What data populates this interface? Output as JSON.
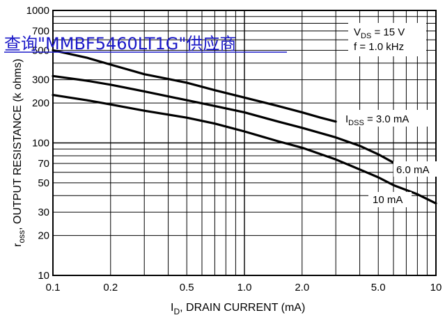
{
  "chart_data": {
    "type": "line",
    "xscale": "log",
    "yscale": "log",
    "xlim": [
      0.1,
      10
    ],
    "ylim": [
      10,
      1000
    ],
    "grid": true,
    "xlabel_main": "I",
    "xlabel_sub": "D",
    "xlabel_rest": ", DRAIN CURRENT (mA)",
    "ylabel_main": "r",
    "ylabel_sub": "oss",
    "ylabel_rest": ", OUTPUT RESISTANCE (k ohms)",
    "x_ticks": [
      {
        "value": 0.1,
        "label": "0.1"
      },
      {
        "value": 0.2,
        "label": "0.2"
      },
      {
        "value": 0.5,
        "label": "0.5"
      },
      {
        "value": 1,
        "label": "1.0"
      },
      {
        "value": 2,
        "label": "2.0"
      },
      {
        "value": 5,
        "label": "5.0"
      },
      {
        "value": 10,
        "label": "10"
      }
    ],
    "y_ticks": [
      {
        "value": 10,
        "label": "10"
      },
      {
        "value": 20,
        "label": "20"
      },
      {
        "value": 30,
        "label": "30"
      },
      {
        "value": 50,
        "label": "50"
      },
      {
        "value": 70,
        "label": "70"
      },
      {
        "value": 100,
        "label": "100"
      },
      {
        "value": 200,
        "label": "200"
      },
      {
        "value": 300,
        "label": "300"
      },
      {
        "value": 500,
        "label": "500"
      },
      {
        "value": 700,
        "label": "700"
      },
      {
        "value": 1000,
        "label": "1000"
      }
    ],
    "conditions": {
      "vds_main": "V",
      "vds_sub": "DS",
      "vds_rest": " = 15 V",
      "freq": "f = 1.0 kHz"
    },
    "series": [
      {
        "name_main": "I",
        "name_sub": "DSS",
        "name_rest": " = 3.0 mA",
        "x": [
          0.1,
          0.15,
          0.2,
          0.3,
          0.5,
          0.7,
          1.0,
          1.5,
          2.0,
          2.5,
          3.0
        ],
        "y": [
          500,
          440,
          390,
          330,
          285,
          250,
          220,
          190,
          170,
          155,
          145
        ]
      },
      {
        "name": "6.0 mA",
        "x": [
          0.1,
          0.15,
          0.2,
          0.3,
          0.5,
          0.7,
          1.0,
          1.5,
          2.0,
          3.0,
          4.0,
          5.0,
          6.0
        ],
        "y": [
          320,
          295,
          275,
          245,
          210,
          190,
          170,
          145,
          130,
          110,
          95,
          82,
          71
        ]
      },
      {
        "name": "10 mA",
        "x": [
          0.1,
          0.15,
          0.2,
          0.3,
          0.5,
          0.7,
          1.0,
          1.5,
          2.0,
          3.0,
          4.0,
          5.0,
          6.0,
          8.0,
          10.0
        ],
        "y": [
          230,
          210,
          195,
          175,
          155,
          140,
          122,
          103,
          92,
          75,
          63,
          55,
          48,
          41,
          35
        ]
      }
    ]
  },
  "overlay_link": "查询\"MMBF5460LT1G\"供应商"
}
